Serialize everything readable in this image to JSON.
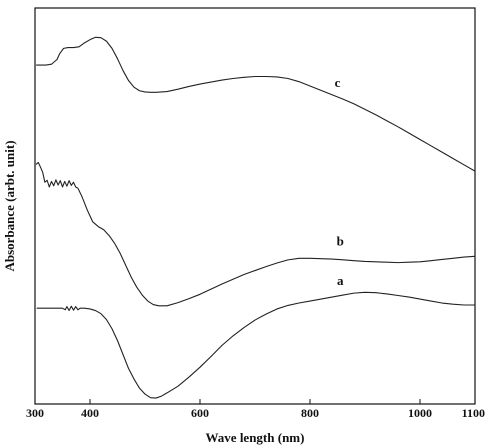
{
  "chart_data": {
    "type": "line",
    "title": "",
    "xlabel": "Wave length (nm)",
    "ylabel": "Absorbance (arbt. unit)",
    "xlim": [
      300,
      1100
    ],
    "ylim": [
      0,
      1
    ],
    "x_ticks": [
      {
        "value": 300,
        "label": "300"
      },
      {
        "value": 400,
        "label": "400"
      },
      {
        "value": 600,
        "label": "600"
      },
      {
        "value": 800,
        "label": "800"
      },
      {
        "value": 1000,
        "label": "1000"
      },
      {
        "value": 1100,
        "label": "1100"
      }
    ],
    "y_ticks_labeled": false,
    "grid": false,
    "series": [
      {
        "name": "a",
        "x": [
          303,
          340,
          350,
          355,
          358,
          362,
          366,
          370,
          374,
          378,
          382,
          390,
          400,
          410,
          420,
          430,
          440,
          450,
          460,
          470,
          480,
          490,
          500,
          510,
          520,
          530,
          540,
          560,
          580,
          600,
          620,
          640,
          660,
          680,
          700,
          720,
          740,
          760,
          780,
          800,
          820,
          840,
          860,
          880,
          900,
          920,
          940,
          960,
          980,
          1000,
          1020,
          1040,
          1060,
          1080,
          1100
        ],
        "y": [
          0.242,
          0.242,
          0.242,
          0.238,
          0.246,
          0.236,
          0.247,
          0.237,
          0.246,
          0.238,
          0.242,
          0.242,
          0.24,
          0.236,
          0.228,
          0.213,
          0.19,
          0.16,
          0.125,
          0.09,
          0.063,
          0.04,
          0.025,
          0.016,
          0.015,
          0.02,
          0.028,
          0.045,
          0.068,
          0.093,
          0.12,
          0.148,
          0.172,
          0.193,
          0.212,
          0.227,
          0.24,
          0.249,
          0.255,
          0.26,
          0.265,
          0.27,
          0.275,
          0.28,
          0.282,
          0.281,
          0.278,
          0.274,
          0.27,
          0.265,
          0.26,
          0.255,
          0.252,
          0.25,
          0.25
        ]
      },
      {
        "name": "b",
        "x": [
          302,
          306,
          310,
          314,
          318,
          322,
          326,
          330,
          334,
          338,
          342,
          346,
          350,
          354,
          358,
          362,
          366,
          370,
          374,
          378,
          385,
          395,
          405,
          415,
          425,
          435,
          445,
          455,
          465,
          475,
          485,
          495,
          505,
          515,
          525,
          540,
          560,
          580,
          600,
          620,
          640,
          660,
          680,
          700,
          720,
          740,
          760,
          780,
          800,
          820,
          840,
          860,
          880,
          900,
          920,
          940,
          960,
          980,
          1000,
          1020,
          1040,
          1060,
          1080,
          1100
        ],
        "y": [
          0.605,
          0.61,
          0.598,
          0.585,
          0.56,
          0.565,
          0.548,
          0.562,
          0.551,
          0.566,
          0.553,
          0.564,
          0.548,
          0.562,
          0.55,
          0.564,
          0.552,
          0.56,
          0.548,
          0.545,
          0.525,
          0.49,
          0.46,
          0.448,
          0.44,
          0.425,
          0.405,
          0.38,
          0.35,
          0.32,
          0.295,
          0.275,
          0.26,
          0.251,
          0.248,
          0.248,
          0.256,
          0.266,
          0.277,
          0.29,
          0.303,
          0.315,
          0.327,
          0.337,
          0.347,
          0.356,
          0.364,
          0.368,
          0.368,
          0.367,
          0.366,
          0.364,
          0.362,
          0.36,
          0.359,
          0.358,
          0.357,
          0.358,
          0.359,
          0.362,
          0.365,
          0.368,
          0.371,
          0.373
        ]
      },
      {
        "name": "c",
        "x": [
          302,
          320,
          330,
          340,
          345,
          352,
          360,
          370,
          380,
          390,
          400,
          410,
          420,
          430,
          440,
          450,
          460,
          470,
          480,
          490,
          500,
          510,
          520,
          540,
          560,
          580,
          600,
          620,
          640,
          660,
          680,
          700,
          720,
          740,
          760,
          780,
          800,
          820,
          840,
          860,
          880,
          900,
          920,
          940,
          960,
          980,
          1000,
          1020,
          1040,
          1060,
          1080,
          1100
        ],
        "y": [
          0.856,
          0.856,
          0.858,
          0.87,
          0.885,
          0.898,
          0.9,
          0.9,
          0.902,
          0.912,
          0.92,
          0.926,
          0.925,
          0.916,
          0.898,
          0.872,
          0.842,
          0.817,
          0.8,
          0.791,
          0.788,
          0.787,
          0.787,
          0.789,
          0.795,
          0.802,
          0.808,
          0.813,
          0.818,
          0.822,
          0.825,
          0.827,
          0.827,
          0.826,
          0.822,
          0.814,
          0.803,
          0.792,
          0.781,
          0.77,
          0.758,
          0.744,
          0.73,
          0.715,
          0.7,
          0.684,
          0.668,
          0.652,
          0.636,
          0.62,
          0.604,
          0.588
        ]
      }
    ],
    "series_labels": [
      {
        "text": "a",
        "x": 855,
        "y": 0.3
      },
      {
        "text": "b",
        "x": 855,
        "y": 0.4
      },
      {
        "text": "c",
        "x": 850,
        "y": 0.8
      }
    ]
  }
}
